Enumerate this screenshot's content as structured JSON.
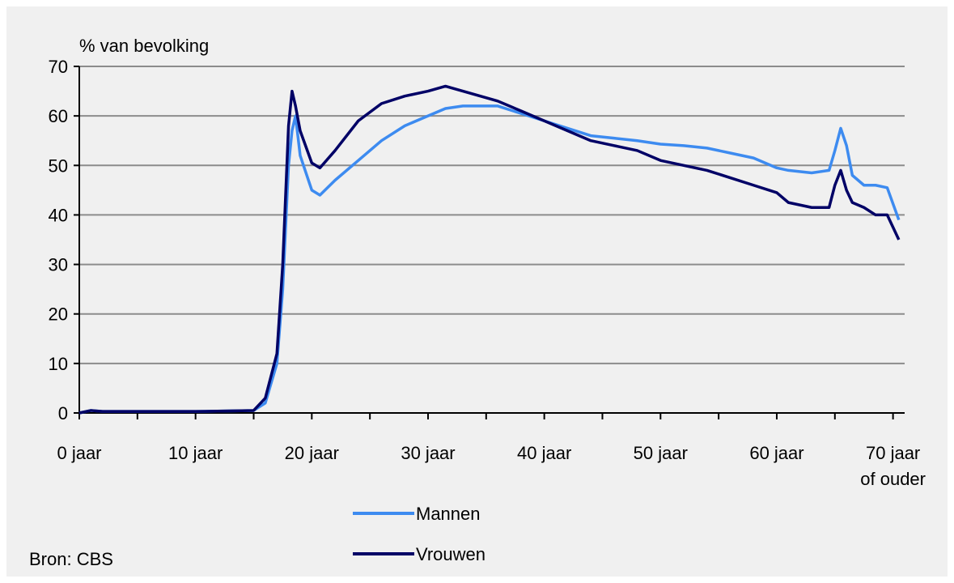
{
  "chart_data": {
    "type": "line",
    "y_axis_label": "% van bevolking",
    "source": "Bron: CBS",
    "x": [
      0,
      1,
      2,
      5,
      10,
      15,
      16,
      17,
      17.5,
      18,
      18.3,
      18.6,
      19,
      20,
      20.7,
      22,
      24,
      26,
      28,
      30,
      31.5,
      33,
      36,
      38,
      40,
      42,
      44,
      46,
      48,
      50,
      52,
      54,
      56,
      58,
      60,
      61,
      63,
      64.5,
      65,
      65.5,
      66,
      66.5,
      67.5,
      68.5,
      69.5,
      70.5
    ],
    "series": [
      {
        "name": "Mannen",
        "color": "#3d8bf0",
        "values": [
          0,
          0.5,
          0.3,
          0.3,
          0.3,
          0.5,
          2,
          10,
          25,
          50,
          57,
          60,
          52,
          45,
          44,
          47,
          51,
          55,
          58,
          60,
          61.5,
          62,
          62,
          60.5,
          59,
          57.5,
          56,
          55.5,
          55,
          54.3,
          54,
          53.5,
          52.5,
          51.5,
          49.5,
          49,
          48.5,
          49,
          53,
          57.5,
          54,
          48,
          46,
          46,
          45.5,
          39
        ]
      },
      {
        "name": "Vrouwen",
        "color": "#000066",
        "values": [
          0,
          0.5,
          0.3,
          0.3,
          0.3,
          0.5,
          3,
          12,
          30,
          58,
          65,
          62,
          57,
          50.5,
          49.5,
          53,
          59,
          62.5,
          64,
          65,
          66,
          65,
          63,
          61,
          59,
          57,
          55,
          54,
          53,
          51,
          50,
          49,
          47.5,
          46,
          44.5,
          42.5,
          41.5,
          41.5,
          46,
          49,
          45,
          42.5,
          41.5,
          40,
          40,
          35
        ]
      }
    ],
    "xlim": [
      0,
      71
    ],
    "xticks": [
      {
        "value": 0,
        "label": "0 jaar"
      },
      {
        "value": 10,
        "label": "10 jaar"
      },
      {
        "value": 20,
        "label": "20 jaar"
      },
      {
        "value": 30,
        "label": "30 jaar"
      },
      {
        "value": 40,
        "label": "40 jaar"
      },
      {
        "value": 50,
        "label": "50 jaar"
      },
      {
        "value": 60,
        "label": "60 jaar"
      },
      {
        "value": 70,
        "label": "70 jaar\nof ouder"
      }
    ],
    "xminor_ticks": [
      5,
      15,
      25,
      35,
      45,
      55,
      65
    ],
    "ylim": [
      0,
      70
    ],
    "yticks": [
      0,
      10,
      20,
      30,
      40,
      50,
      60,
      70
    ],
    "grid": true
  }
}
